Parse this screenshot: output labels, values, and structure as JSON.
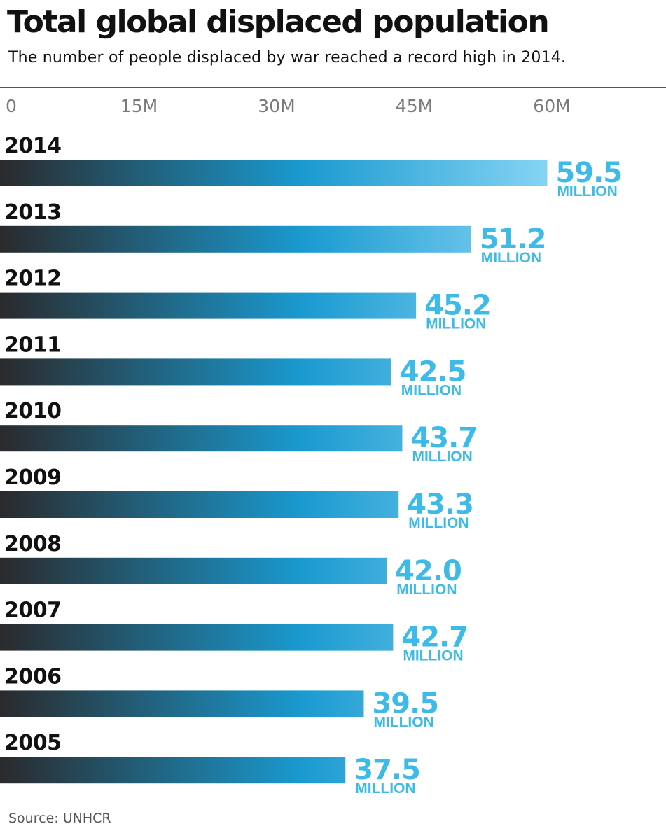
{
  "title": "Total global displaced population",
  "subtitle": "The number of people displaced by war reached a record high in 2014.",
  "source": "Source: UNHCR",
  "colors": {
    "bar_start": "#2a2a2c",
    "bar_mid": "#1a9ad0",
    "bar_end": "#86d4f4",
    "value_label": "#3dbbe8",
    "tick_label": "#7a7a7a",
    "year_label": "#111111"
  },
  "chart_data": {
    "type": "bar",
    "orientation": "horizontal",
    "title": "Total global displaced population",
    "subtitle": "The number of people displaced by war reached a record high in 2014.",
    "xlabel": "",
    "ylabel": "",
    "xlim": [
      0,
      64
    ],
    "unit": "MILLION",
    "ticks": [
      {
        "value": 0,
        "label": "0"
      },
      {
        "value": 15,
        "label": "15M"
      },
      {
        "value": 30,
        "label": "30M"
      },
      {
        "value": 45,
        "label": "45M"
      },
      {
        "value": 60,
        "label": "60M"
      }
    ],
    "categories": [
      "2014",
      "2013",
      "2012",
      "2011",
      "2010",
      "2009",
      "2008",
      "2007",
      "2006",
      "2005"
    ],
    "values": [
      59.5,
      51.2,
      45.2,
      42.5,
      43.7,
      43.3,
      42.0,
      42.7,
      39.5,
      37.5
    ],
    "value_labels": [
      "59.5",
      "51.2",
      "45.2",
      "42.5",
      "43.7",
      "43.3",
      "42.0",
      "42.7",
      "39.5",
      "37.5"
    ],
    "grid": false,
    "legend": "none"
  }
}
